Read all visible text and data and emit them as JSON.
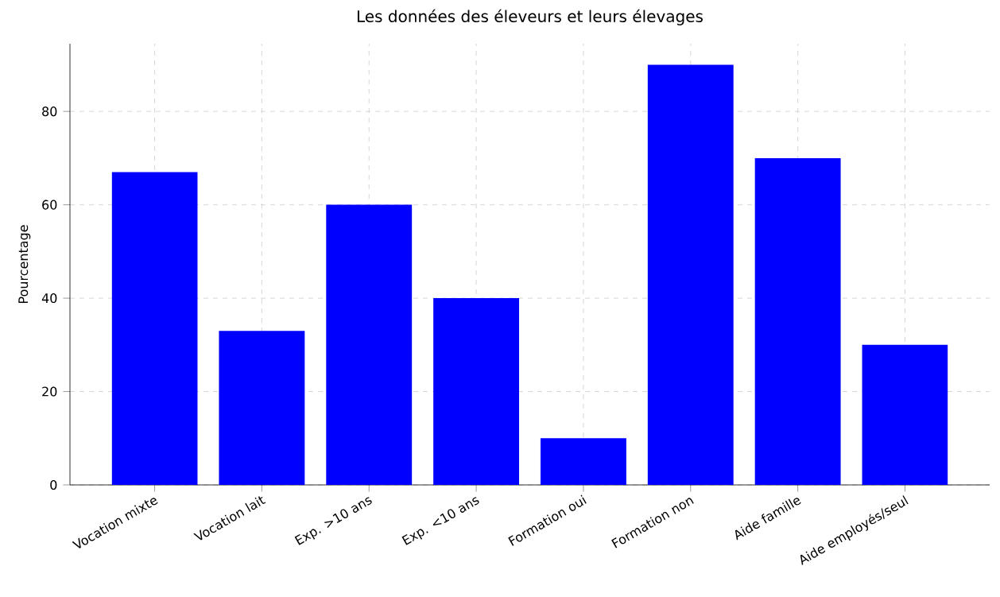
{
  "chart_data": {
    "type": "bar",
    "title": "Les données des éleveurs et leurs élevages",
    "ylabel": "Pourcentage",
    "categories": [
      "Vocation mixte",
      "Vocation lait",
      "Exp. >10 ans",
      "Exp. <10 ans",
      "Formation oui",
      "Formation non",
      "Aide famille",
      "Aide employés/seul"
    ],
    "values": [
      67,
      33,
      60,
      40,
      10,
      90,
      70,
      30
    ],
    "color": "#0000ff",
    "ylim": [
      0,
      94.5
    ],
    "yticks": [
      0,
      20,
      40,
      60,
      80
    ],
    "grid": true
  }
}
